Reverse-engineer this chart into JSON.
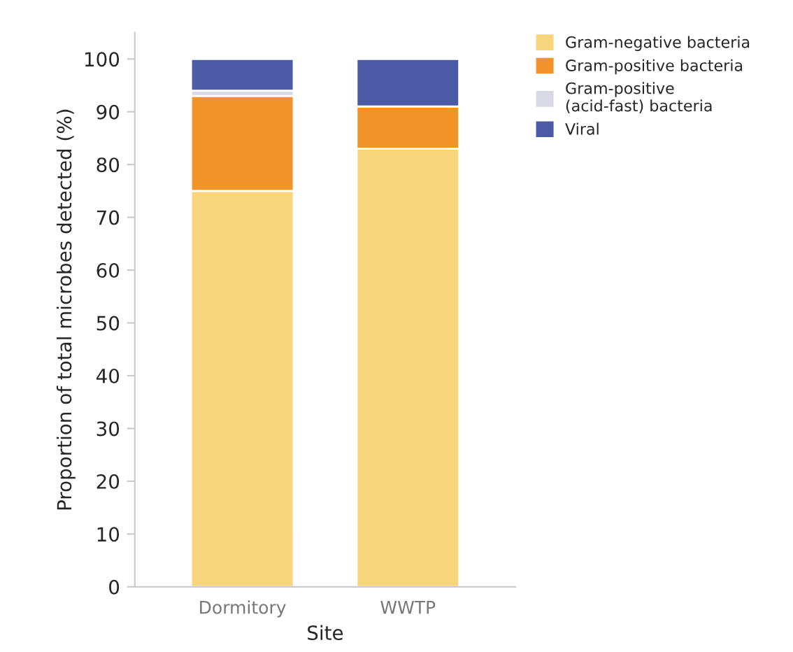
{
  "chart_data": {
    "type": "bar",
    "stacked": true,
    "xlabel": "Site",
    "ylabel": "Proportion of total microbes detected (%)",
    "categories": [
      "Dormitory",
      "WWTP"
    ],
    "series": [
      {
        "name": "Gram-negative bacteria",
        "color": "#f8d47c",
        "values": [
          75,
          83
        ]
      },
      {
        "name": "Gram-positive bacteria",
        "color": "#f2932a",
        "values": [
          18,
          8
        ]
      },
      {
        "name": "Gram-positive\n(acid-fast) bacteria",
        "color": "#d9d9e6",
        "values": [
          1,
          0
        ]
      },
      {
        "name": "Viral",
        "color": "#4b5aa6",
        "values": [
          6,
          9
        ]
      }
    ],
    "ylim": [
      0,
      105
    ],
    "yticks": [
      0,
      10,
      20,
      30,
      40,
      50,
      60,
      70,
      80,
      90,
      100
    ],
    "legend": "top right",
    "grid": false
  }
}
